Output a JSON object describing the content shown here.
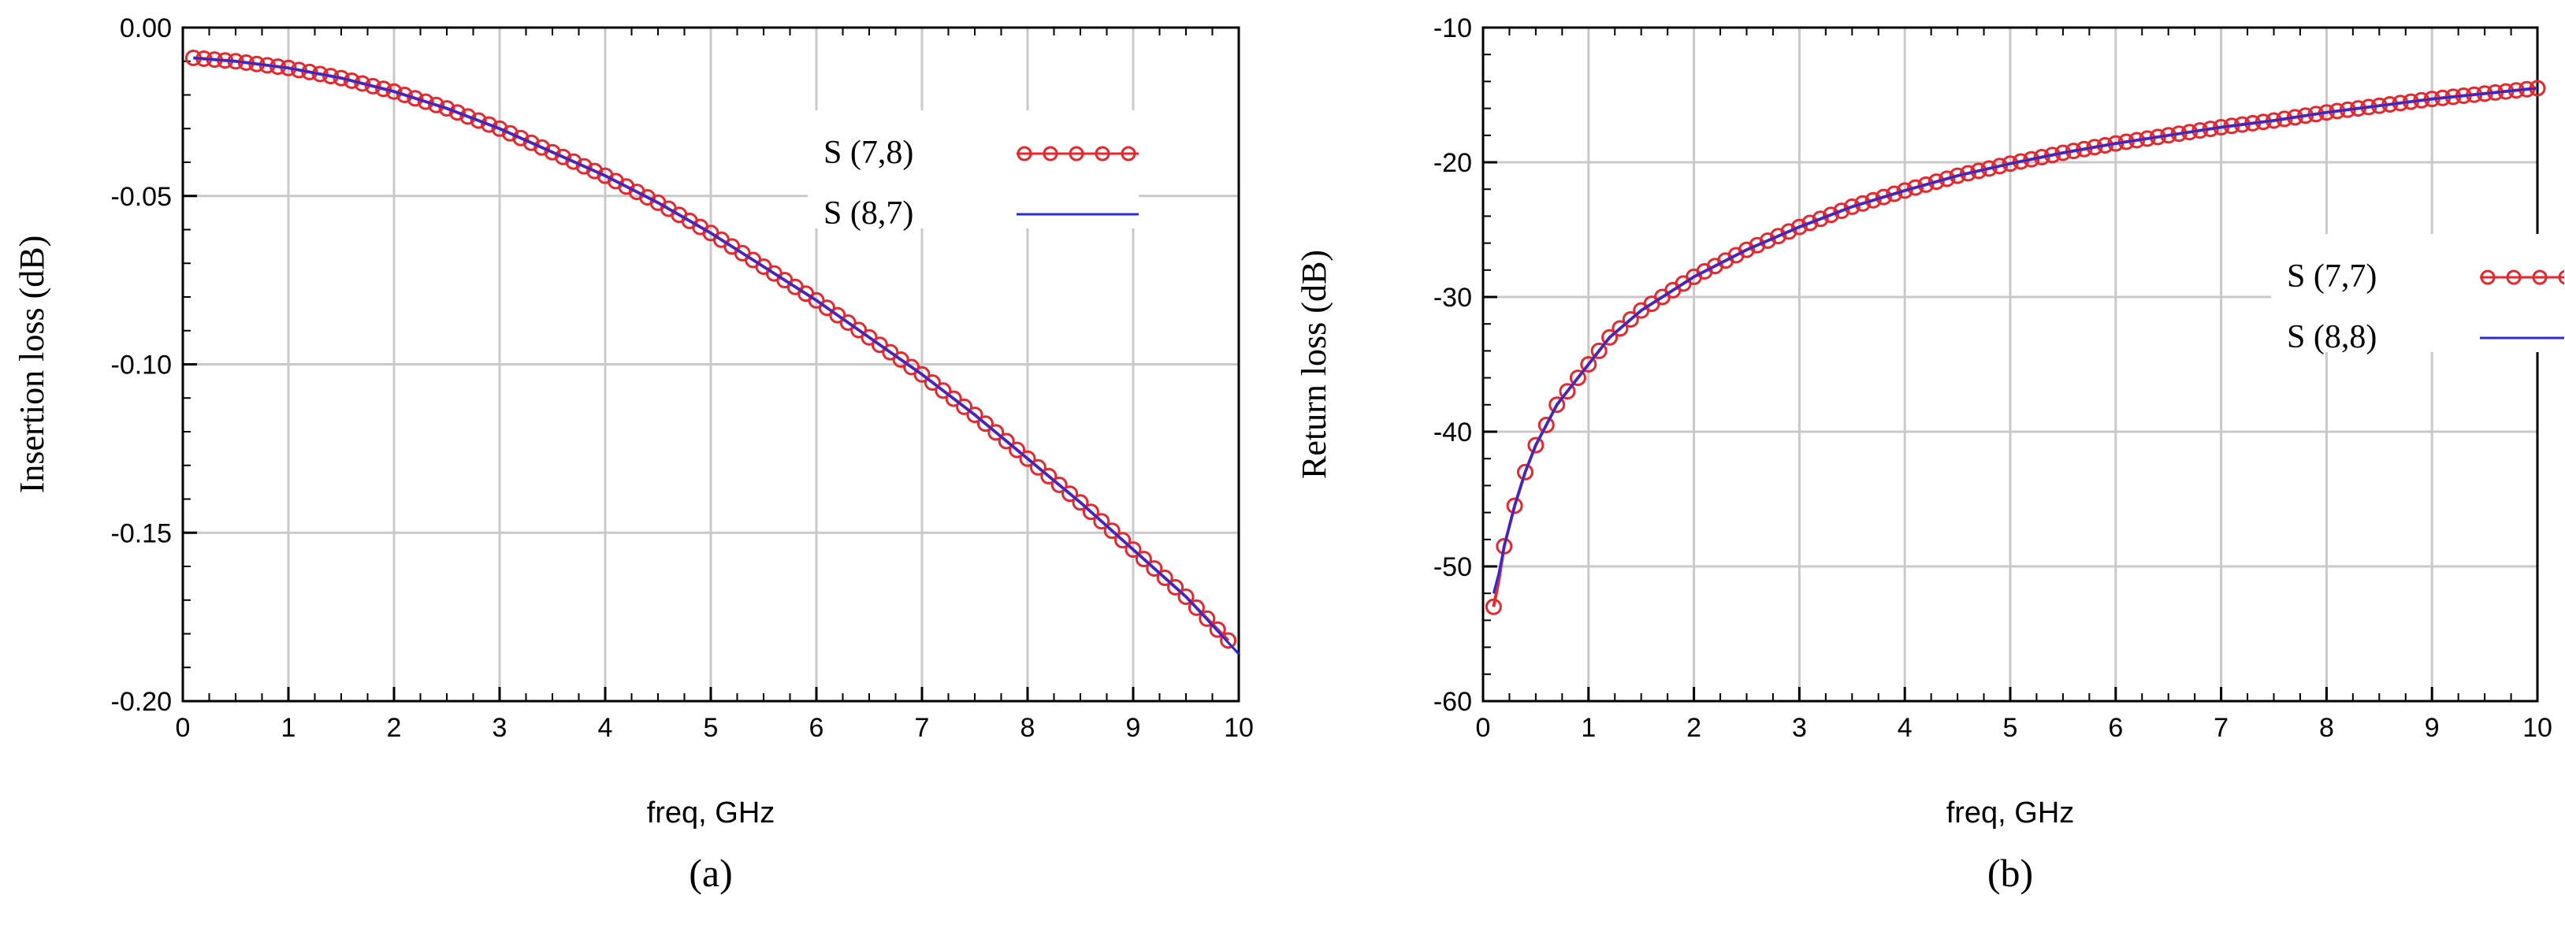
{
  "chart_data": [
    {
      "type": "line",
      "panel_label": "(a)",
      "xlabel": "freq, GHz",
      "ylabel": "Insertion loss (dB)",
      "xlim": [
        0,
        10
      ],
      "ylim": [
        -0.2,
        0.0
      ],
      "xticks": [
        0,
        1,
        2,
        3,
        4,
        5,
        6,
        7,
        8,
        9,
        10
      ],
      "xtick_labels": [
        "0",
        "1",
        "2",
        "3",
        "4",
        "5",
        "6",
        "7",
        "8",
        "9",
        "10"
      ],
      "yticks": [
        0.0,
        -0.05,
        -0.1,
        -0.15,
        -0.2
      ],
      "ytick_labels": [
        "0.00",
        "-0.05",
        "-0.10",
        "-0.15",
        "-0.20"
      ],
      "grid": true,
      "legend_position": "top-right",
      "series": [
        {
          "name": "S (7,8)",
          "style": "line-with-circle-markers",
          "color": "#e8262b",
          "x": [
            0.1,
            0.5,
            1.0,
            1.5,
            2.0,
            2.5,
            3.0,
            3.5,
            4.0,
            4.5,
            5.0,
            5.5,
            6.0,
            6.5,
            7.0,
            7.5,
            8.0,
            8.5,
            9.0,
            9.5,
            9.9
          ],
          "y": [
            -0.009,
            -0.01,
            -0.012,
            -0.015,
            -0.019,
            -0.024,
            -0.03,
            -0.037,
            -0.044,
            -0.052,
            -0.061,
            -0.071,
            -0.081,
            -0.092,
            -0.103,
            -0.115,
            -0.128,
            -0.141,
            -0.155,
            -0.169,
            -0.182
          ]
        },
        {
          "name": "S (8,7)",
          "style": "line",
          "color": "#2b2bd9",
          "x": [
            0.1,
            0.5,
            1.0,
            1.5,
            2.0,
            2.5,
            3.0,
            3.5,
            4.0,
            4.5,
            5.0,
            5.5,
            6.0,
            6.5,
            7.0,
            7.5,
            8.0,
            8.5,
            9.0,
            9.5,
            10.0
          ],
          "y": [
            -0.009,
            -0.01,
            -0.012,
            -0.015,
            -0.019,
            -0.024,
            -0.03,
            -0.037,
            -0.044,
            -0.052,
            -0.061,
            -0.071,
            -0.081,
            -0.092,
            -0.103,
            -0.115,
            -0.128,
            -0.141,
            -0.155,
            -0.169,
            -0.186
          ]
        }
      ]
    },
    {
      "type": "line",
      "panel_label": "(b)",
      "xlabel": "freq, GHz",
      "ylabel": "Return loss (dB)",
      "xlim": [
        0,
        10
      ],
      "ylim": [
        -60,
        -10
      ],
      "xticks": [
        0,
        1,
        2,
        3,
        4,
        5,
        6,
        7,
        8,
        9,
        10
      ],
      "xtick_labels": [
        "0",
        "1",
        "2",
        "3",
        "4",
        "5",
        "6",
        "7",
        "8",
        "9",
        "10"
      ],
      "yticks": [
        -10,
        -20,
        -30,
        -40,
        -50,
        -60
      ],
      "ytick_labels": [
        "-10",
        "-20",
        "-30",
        "-40",
        "-50",
        "-60"
      ],
      "grid": true,
      "legend_position": "right",
      "series": [
        {
          "name": "S (7,7)",
          "style": "line-with-circle-markers",
          "color": "#e8262b",
          "x": [
            0.1,
            0.15,
            0.2,
            0.3,
            0.4,
            0.5,
            0.6,
            0.7,
            0.8,
            1.0,
            1.2,
            1.5,
            2.0,
            2.5,
            3.0,
            3.5,
            4.0,
            4.5,
            5.0,
            5.5,
            6.0,
            6.5,
            7.0,
            7.5,
            8.0,
            8.5,
            9.0,
            9.5,
            10.0
          ],
          "y": [
            -53.0,
            -51.0,
            -48.5,
            -45.5,
            -43.0,
            -41.0,
            -39.5,
            -38.0,
            -37.0,
            -35.0,
            -33.0,
            -31.0,
            -28.5,
            -26.5,
            -24.8,
            -23.3,
            -22.1,
            -21.0,
            -20.1,
            -19.3,
            -18.6,
            -18.0,
            -17.4,
            -16.9,
            -16.3,
            -15.8,
            -15.3,
            -14.9,
            -14.5
          ]
        },
        {
          "name": "S (8,8)",
          "style": "line",
          "color": "#2b2bd9",
          "x": [
            0.1,
            0.15,
            0.2,
            0.3,
            0.4,
            0.5,
            0.6,
            0.7,
            0.8,
            1.0,
            1.2,
            1.5,
            2.0,
            2.5,
            3.0,
            3.5,
            4.0,
            4.5,
            5.0,
            5.5,
            6.0,
            6.5,
            7.0,
            7.5,
            8.0,
            8.5,
            9.0,
            9.5,
            10.0
          ],
          "y": [
            -52.0,
            -50.5,
            -48.5,
            -45.5,
            -43.0,
            -41.0,
            -39.5,
            -38.0,
            -37.0,
            -35.0,
            -33.0,
            -31.0,
            -28.5,
            -26.5,
            -24.8,
            -23.3,
            -22.1,
            -21.0,
            -20.1,
            -19.3,
            -18.6,
            -18.0,
            -17.4,
            -16.9,
            -16.3,
            -15.8,
            -15.3,
            -14.9,
            -14.5
          ]
        }
      ]
    }
  ]
}
